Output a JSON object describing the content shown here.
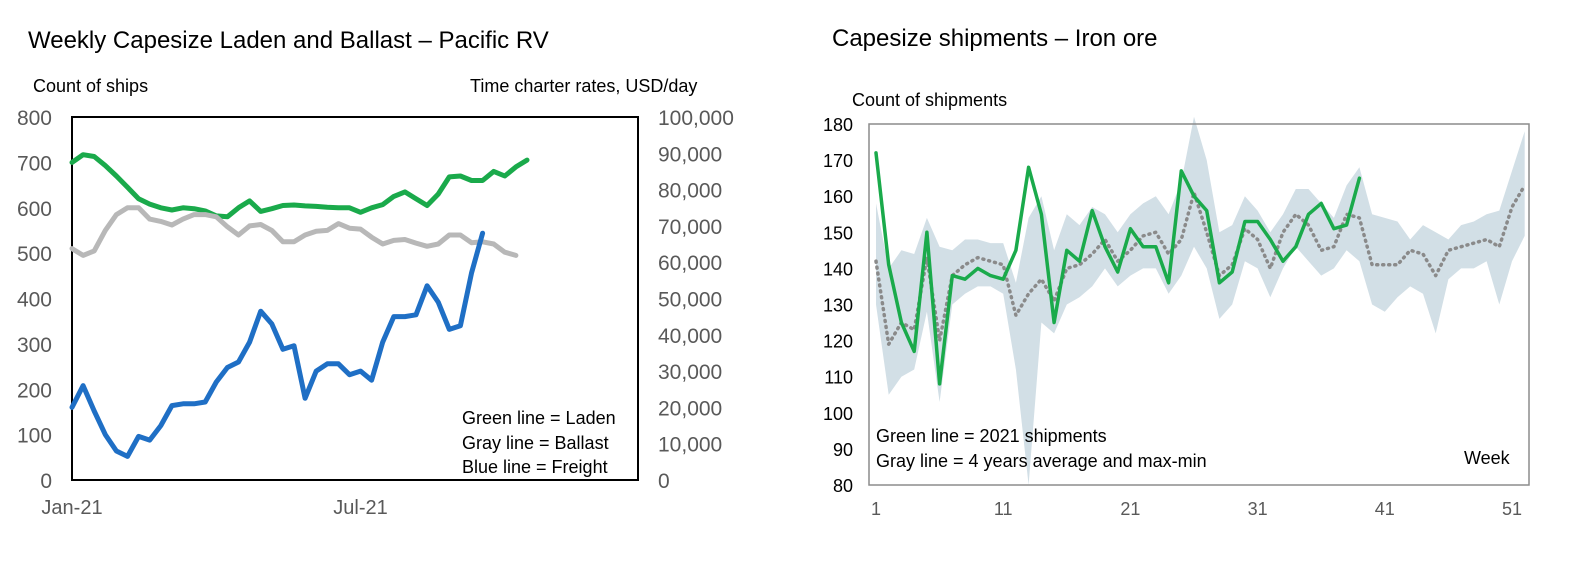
{
  "chart_data": [
    {
      "type": "line",
      "title": "Weekly Capesize Laden and Ballast – Pacific RV",
      "ylabel": "Count of ships",
      "y2label": "Time charter rates, USD/day",
      "ylim": [
        0,
        800
      ],
      "y2lim": [
        0,
        100000
      ],
      "yticks": [
        "0",
        "100",
        "200",
        "300",
        "400",
        "500",
        "600",
        "700",
        "800"
      ],
      "y2ticks": [
        "0",
        "10,000",
        "20,000",
        "30,000",
        "40,000",
        "50,000",
        "60,000",
        "70,000",
        "80,000",
        "90,000",
        "100,000"
      ],
      "xtick_labels": [
        {
          "label": "Jan-21",
          "week": 0
        },
        {
          "label": "Jul-21",
          "week": 26
        }
      ],
      "legend_lines": [
        "Green line = Laden",
        "Gray line = Ballast",
        "Blue line = Freight"
      ],
      "colors": {
        "laden": "#1aaa4b",
        "ballast": "#b8b8b8",
        "freight": "#1f6fc5"
      },
      "series": [
        {
          "name": "Laden",
          "axis": "left",
          "values": [
            700,
            717,
            713,
            693,
            670,
            645,
            620,
            608,
            600,
            595,
            600,
            598,
            593,
            582,
            580,
            600,
            615,
            592,
            598,
            605,
            606,
            604,
            603,
            601,
            600,
            600,
            590,
            600,
            607,
            625,
            635,
            620,
            605,
            630,
            668,
            670,
            660,
            660,
            680,
            670,
            690,
            705
          ]
        },
        {
          "name": "Ballast",
          "axis": "left",
          "values": [
            510,
            495,
            505,
            550,
            585,
            600,
            600,
            575,
            570,
            562,
            575,
            585,
            585,
            580,
            558,
            540,
            560,
            563,
            550,
            525,
            525,
            540,
            548,
            550,
            565,
            555,
            553,
            535,
            520,
            528,
            530,
            522,
            515,
            520,
            540,
            540,
            523,
            525,
            520,
            502,
            495
          ]
        },
        {
          "name": "Freight",
          "axis": "right",
          "values": [
            20000,
            26000,
            19000,
            12500,
            8000,
            6500,
            12000,
            11000,
            15000,
            20500,
            21000,
            21000,
            21500,
            27000,
            31000,
            32500,
            38000,
            46500,
            43000,
            36000,
            37000,
            22500,
            30000,
            32000,
            32000,
            29000,
            30000,
            27500,
            38000,
            45000,
            45000,
            45500,
            53500,
            49000,
            41500,
            42500,
            57000,
            68000
          ]
        }
      ]
    },
    {
      "type": "line",
      "title": "Capesize shipments – Iron ore",
      "ylabel": "Count of shipments",
      "xlabel": "Week",
      "ylim": [
        80,
        180
      ],
      "xlim": [
        1,
        52
      ],
      "yticks": [
        "80",
        "90",
        "100",
        "110",
        "120",
        "130",
        "140",
        "150",
        "160",
        "170",
        "180"
      ],
      "xticks": [
        "1",
        "11",
        "21",
        "31",
        "41",
        "51"
      ],
      "legend_lines": [
        "Green line = 2021 shipments",
        "Gray line = 4 years average and max-min"
      ],
      "colors": {
        "shipments": "#1aaa4b",
        "average": "#8a8a8a",
        "band": "#d2dfe6"
      },
      "weeks": [
        1,
        2,
        3,
        4,
        5,
        6,
        7,
        8,
        9,
        10,
        11,
        12,
        13,
        14,
        15,
        16,
        17,
        18,
        19,
        20,
        21,
        22,
        23,
        24,
        25,
        26,
        27,
        28,
        29,
        30,
        31,
        32,
        33,
        34,
        35,
        36,
        37,
        38,
        39,
        40,
        41,
        42,
        43,
        44,
        45,
        46,
        47,
        48,
        49,
        50,
        51,
        52
      ],
      "series": [
        {
          "name": "2021 shipments",
          "values": [
            172,
            141,
            125,
            117,
            150,
            108,
            138,
            137,
            140,
            138,
            137,
            145,
            168,
            155,
            125,
            145,
            142,
            156,
            146,
            139,
            151,
            146,
            146,
            136,
            167,
            160,
            156,
            136,
            139,
            153,
            153,
            148,
            142,
            146,
            155,
            158,
            151,
            152,
            165
          ]
        },
        {
          "name": "4 years average",
          "values": [
            142,
            119,
            125,
            123,
            143,
            120,
            138,
            141,
            143,
            142,
            141,
            127,
            133,
            137,
            131,
            140,
            141,
            144,
            148,
            142,
            145,
            149,
            150,
            144,
            148,
            161,
            150,
            138,
            141,
            151,
            148,
            140,
            150,
            155,
            152,
            145,
            146,
            155,
            154,
            141,
            141,
            141,
            145,
            144,
            138,
            145,
            146,
            147,
            148,
            146,
            157,
            163
          ]
        },
        {
          "name": "max",
          "values": [
            158,
            140,
            145,
            144,
            154,
            146,
            145,
            148,
            148,
            147,
            147,
            136,
            154,
            160,
            145,
            155,
            152,
            157,
            155,
            150,
            155,
            158,
            160,
            155,
            164,
            182,
            170,
            150,
            152,
            160,
            156,
            150,
            155,
            162,
            162,
            158,
            154,
            163,
            168,
            155,
            154,
            153,
            148,
            152,
            150,
            148,
            152,
            153,
            155,
            156,
            167,
            178
          ]
        },
        {
          "name": "min",
          "values": [
            130,
            105,
            110,
            112,
            128,
            103,
            130,
            133,
            135,
            135,
            133,
            112,
            80,
            125,
            122,
            130,
            132,
            135,
            140,
            135,
            138,
            140,
            140,
            133,
            138,
            146,
            140,
            126,
            130,
            142,
            140,
            132,
            140,
            146,
            142,
            138,
            140,
            145,
            142,
            130,
            128,
            132,
            135,
            133,
            122,
            137,
            140,
            140,
            142,
            130,
            142,
            149
          ]
        }
      ]
    }
  ]
}
